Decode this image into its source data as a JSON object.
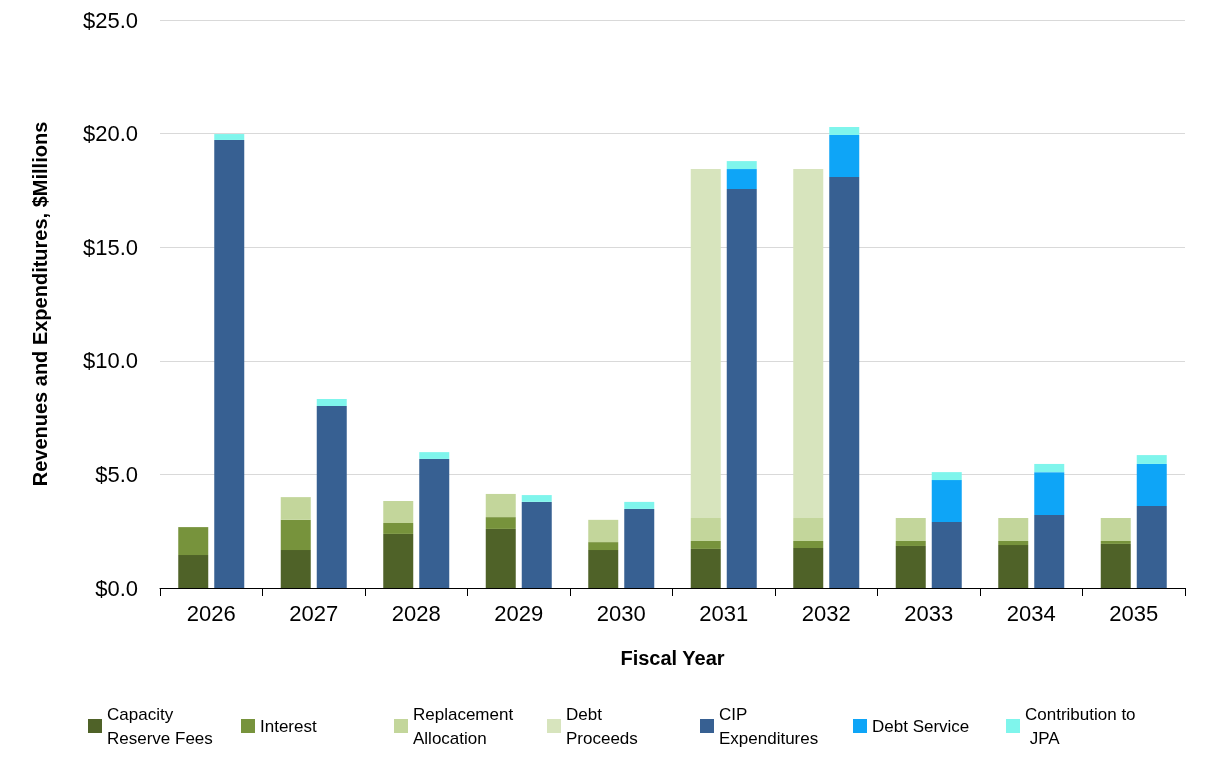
{
  "chart_data": {
    "type": "bar",
    "xlabel": "Fiscal Year",
    "ylabel": "Revenues and Expenditures, $Millions",
    "categories": [
      "2026",
      "2027",
      "2028",
      "2029",
      "2030",
      "2031",
      "2032",
      "2033",
      "2034",
      "2035"
    ],
    "ylim": [
      0,
      25
    ],
    "yticks": [
      {
        "value": 0,
        "label": "$0.0"
      },
      {
        "value": 5,
        "label": "$5.0"
      },
      {
        "value": 10,
        "label": "$10.0"
      },
      {
        "value": 15,
        "label": "$15.0"
      },
      {
        "value": 20,
        "label": "$20.0"
      },
      {
        "value": 25,
        "label": "$25.0"
      }
    ],
    "grid": "y",
    "legend": "bottom",
    "series": [
      {
        "name": "Capacity Reserve Fees",
        "color": "#4f6228",
        "base": [
          0,
          0,
          0,
          0,
          0,
          0,
          0,
          0,
          0,
          0
        ],
        "values": [
          1.45,
          1.67,
          2.38,
          2.6,
          1.67,
          1.72,
          1.76,
          1.85,
          1.89,
          1.94
        ]
      },
      {
        "name": "Interest",
        "color": "#77933c",
        "base": [
          1.45,
          1.67,
          2.38,
          2.6,
          1.67,
          1.72,
          1.76,
          1.85,
          1.89,
          1.94
        ],
        "values": [
          1.23,
          1.33,
          0.48,
          0.52,
          0.35,
          0.35,
          0.31,
          0.22,
          0.18,
          0.13
        ]
      },
      {
        "name": "Replacement Allocation",
        "color": "#c3d69b",
        "base": [
          null,
          3.0,
          2.86,
          3.12,
          2.02,
          2.07,
          2.07,
          2.07,
          2.07,
          2.07
        ],
        "values": [
          null,
          1.0,
          0.97,
          1.02,
          0.98,
          1.01,
          1.01,
          1.01,
          1.01,
          1.01
        ]
      },
      {
        "name": "Debt Proceeds",
        "color": "#d7e4bd",
        "base": [
          null,
          null,
          null,
          null,
          null,
          3.08,
          3.08,
          null,
          null,
          null
        ],
        "values": [
          null,
          null,
          null,
          null,
          null,
          15.36,
          15.36,
          null,
          null,
          null
        ]
      },
      {
        "name": "CIP Expenditures",
        "color": "#376092",
        "base": [
          0,
          0,
          0,
          0,
          0,
          0,
          0,
          0,
          0,
          0
        ],
        "values": [
          19.72,
          8.01,
          5.68,
          3.79,
          3.48,
          17.56,
          18.09,
          2.9,
          3.21,
          3.61
        ]
      },
      {
        "name": "Debt Service",
        "color": "#0ea5f7",
        "base": [
          null,
          null,
          null,
          null,
          null,
          17.56,
          18.09,
          2.9,
          3.21,
          3.61
        ],
        "values": [
          null,
          null,
          null,
          null,
          null,
          0.88,
          1.85,
          1.85,
          1.89,
          1.85
        ]
      },
      {
        "name": "Contribution to JPA",
        "color": "#7ff5ec",
        "base": [
          19.72,
          8.01,
          5.68,
          3.79,
          3.48,
          18.44,
          19.94,
          4.75,
          5.1,
          5.46
        ],
        "values": [
          0.26,
          0.31,
          0.3,
          0.3,
          0.31,
          0.35,
          0.35,
          0.35,
          0.36,
          0.39
        ]
      }
    ]
  }
}
